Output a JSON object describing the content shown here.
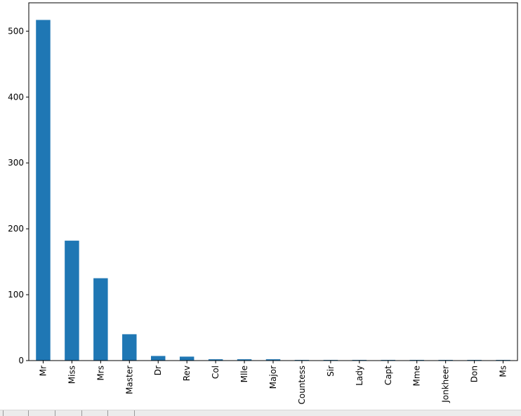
{
  "chart_data": {
    "type": "bar",
    "title": "",
    "xlabel": "",
    "ylabel": "",
    "categories": [
      "Mr",
      "Miss",
      "Mrs",
      "Master",
      "Dr",
      "Rev",
      "Col",
      "Mlle",
      "Major",
      "Countess",
      "Sir",
      "Lady",
      "Capt",
      "Mme",
      "Jonkheer",
      "Don",
      "Ms"
    ],
    "values": [
      517,
      182,
      125,
      40,
      7,
      6,
      2,
      2,
      2,
      1,
      1,
      1,
      1,
      1,
      1,
      1,
      1
    ],
    "ylim": [
      0,
      543
    ],
    "yticks": [
      0,
      100,
      200,
      300,
      400,
      500
    ],
    "grid": false,
    "legend": "none",
    "bar_color": "#1f77b4"
  }
}
